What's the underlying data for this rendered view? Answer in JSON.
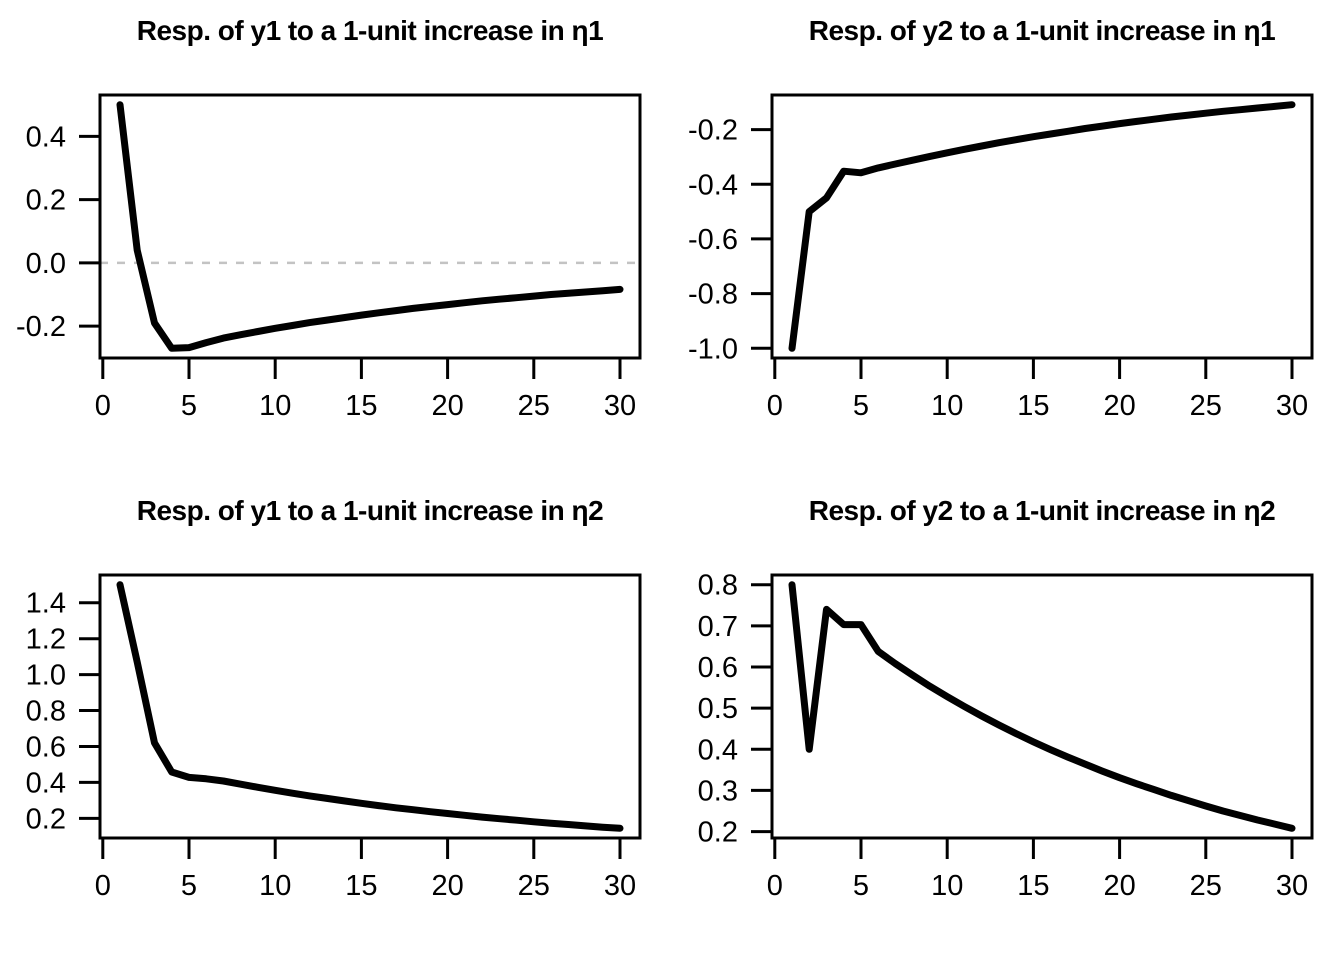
{
  "figure": {
    "background": "#ffffff",
    "axis_color": "#000000",
    "rows": 2,
    "cols": 2
  },
  "chart_data": [
    {
      "id": "resp-y1-eta1",
      "type": "line",
      "title": "Resp. of y1 to a 1-unit increase in η1",
      "xlabel": "",
      "ylabel": "",
      "grid": false,
      "legend": "none",
      "zero_line": true,
      "zero_line_color": "#c3c3c3",
      "line_color": "#000000",
      "xlim": [
        1,
        30
      ],
      "ylim": [
        -0.27,
        0.5
      ],
      "axis_padding": 0.04,
      "xticks": [
        0,
        5,
        10,
        15,
        20,
        25,
        30
      ],
      "ytick_values": [
        0.4,
        0.2,
        0.0,
        -0.2
      ],
      "ytick_labels": [
        "0.4",
        "0.2",
        "0.0",
        "-0.2"
      ],
      "x": [
        1,
        2,
        3,
        4,
        5,
        6,
        7,
        8,
        9,
        10,
        11,
        12,
        13,
        14,
        15,
        16,
        17,
        18,
        19,
        20,
        21,
        22,
        23,
        24,
        25,
        26,
        27,
        28,
        29,
        30
      ],
      "values": [
        0.5,
        0.04,
        -0.19,
        -0.27,
        -0.268,
        -0.252,
        -0.238,
        -0.227,
        -0.217,
        -0.207,
        -0.198,
        -0.189,
        -0.181,
        -0.173,
        -0.165,
        -0.158,
        -0.151,
        -0.144,
        -0.138,
        -0.132,
        -0.126,
        -0.12,
        -0.115,
        -0.11,
        -0.105,
        -0.1,
        -0.096,
        -0.092,
        -0.088,
        -0.084
      ]
    },
    {
      "id": "resp-y2-eta1",
      "type": "line",
      "title": "Resp. of y2 to a 1-unit increase in η1",
      "xlabel": "",
      "ylabel": "",
      "grid": false,
      "legend": "none",
      "zero_line": false,
      "zero_line_color": "#c3c3c3",
      "line_color": "#000000",
      "xlim": [
        1,
        30
      ],
      "ylim": [
        -1.0,
        -0.109
      ],
      "axis_padding": 0.04,
      "xticks": [
        0,
        5,
        10,
        15,
        20,
        25,
        30
      ],
      "ytick_values": [
        -0.2,
        -0.4,
        -0.6,
        -0.8,
        -1.0
      ],
      "ytick_labels": [
        "-0.2",
        "-0.4",
        "-0.6",
        "-0.8",
        "-1.0"
      ],
      "x": [
        1,
        2,
        3,
        4,
        5,
        6,
        7,
        8,
        9,
        10,
        11,
        12,
        13,
        14,
        15,
        16,
        17,
        18,
        19,
        20,
        21,
        22,
        23,
        24,
        25,
        26,
        27,
        28,
        29,
        30
      ],
      "values": [
        -1.0,
        -0.5,
        -0.45,
        -0.352,
        -0.358,
        -0.34,
        -0.326,
        -0.312,
        -0.298,
        -0.285,
        -0.272,
        -0.26,
        -0.248,
        -0.237,
        -0.226,
        -0.216,
        -0.206,
        -0.196,
        -0.187,
        -0.178,
        -0.17,
        -0.162,
        -0.154,
        -0.147,
        -0.14,
        -0.133,
        -0.127,
        -0.121,
        -0.115,
        -0.109
      ]
    },
    {
      "id": "resp-y1-eta2",
      "type": "line",
      "title": "Resp. of y1 to a 1-unit increase in η2",
      "xlabel": "",
      "ylabel": "",
      "grid": false,
      "legend": "none",
      "zero_line": false,
      "zero_line_color": "#c3c3c3",
      "line_color": "#000000",
      "xlim": [
        1,
        30
      ],
      "ylim": [
        0.145,
        1.5
      ],
      "axis_padding": 0.04,
      "xticks": [
        0,
        5,
        10,
        15,
        20,
        25,
        30
      ],
      "ytick_values": [
        1.4,
        1.2,
        1.0,
        0.8,
        0.6,
        0.4,
        0.2
      ],
      "ytick_labels": [
        "1.4",
        "1.2",
        "1.0",
        "0.8",
        "0.6",
        "0.4",
        "0.2"
      ],
      "x": [
        1,
        2,
        3,
        4,
        5,
        6,
        7,
        8,
        9,
        10,
        11,
        12,
        13,
        14,
        15,
        16,
        17,
        18,
        19,
        20,
        21,
        22,
        23,
        24,
        25,
        26,
        27,
        28,
        29,
        30
      ],
      "values": [
        1.5,
        1.07,
        0.62,
        0.458,
        0.428,
        0.42,
        0.408,
        0.39,
        0.373,
        0.356,
        0.34,
        0.325,
        0.311,
        0.297,
        0.284,
        0.271,
        0.259,
        0.248,
        0.237,
        0.227,
        0.217,
        0.207,
        0.198,
        0.19,
        0.181,
        0.173,
        0.166,
        0.158,
        0.151,
        0.145
      ]
    },
    {
      "id": "resp-y2-eta2",
      "type": "line",
      "title": "Resp. of y2 to a 1-unit increase in η2",
      "xlabel": "",
      "ylabel": "",
      "grid": false,
      "legend": "none",
      "zero_line": false,
      "zero_line_color": "#c3c3c3",
      "line_color": "#000000",
      "xlim": [
        1,
        30
      ],
      "ylim": [
        0.208,
        0.8
      ],
      "axis_padding": 0.04,
      "xticks": [
        0,
        5,
        10,
        15,
        20,
        25,
        30
      ],
      "ytick_values": [
        0.8,
        0.7,
        0.6,
        0.5,
        0.4,
        0.3,
        0.2
      ],
      "ytick_labels": [
        "0.8",
        "0.7",
        "0.6",
        "0.5",
        "0.4",
        "0.3",
        "0.2"
      ],
      "x": [
        1,
        2,
        3,
        4,
        5,
        6,
        7,
        8,
        9,
        10,
        11,
        12,
        13,
        14,
        15,
        16,
        17,
        18,
        19,
        20,
        21,
        22,
        23,
        24,
        25,
        26,
        27,
        28,
        29,
        30
      ],
      "values": [
        0.8,
        0.4,
        0.74,
        0.703,
        0.703,
        0.638,
        0.608,
        0.58,
        0.553,
        0.528,
        0.504,
        0.481,
        0.459,
        0.438,
        0.418,
        0.399,
        0.381,
        0.364,
        0.347,
        0.331,
        0.316,
        0.302,
        0.288,
        0.275,
        0.262,
        0.25,
        0.239,
        0.228,
        0.218,
        0.208
      ]
    }
  ]
}
